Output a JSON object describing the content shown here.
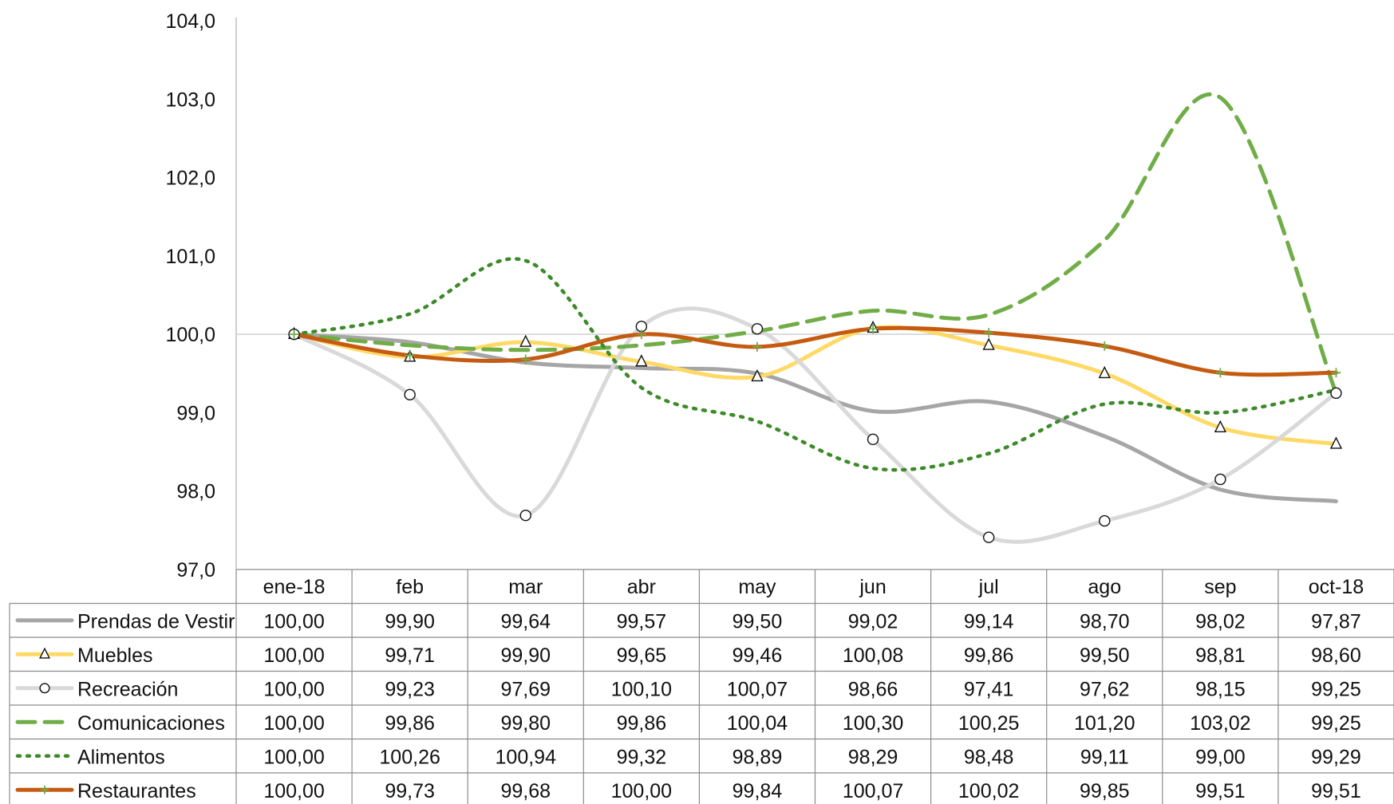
{
  "chart_data": {
    "type": "line",
    "title": "",
    "xlabel": "",
    "ylabel": "",
    "ylim": [
      97.0,
      104.0
    ],
    "ytick_step": 1.0,
    "ytick_labels": [
      "97,0",
      "98,0",
      "99,0",
      "100,0",
      "101,0",
      "102,0",
      "103,0",
      "104,0"
    ],
    "reference_line": 100.0,
    "categories": [
      "ene-18",
      "feb",
      "mar",
      "abr",
      "may",
      "jun",
      "jul",
      "ago",
      "sep",
      "oct-18"
    ],
    "legend_placement": "data-table-left",
    "series": [
      {
        "name": "Prendas de Vestir",
        "color": "#a6a6a6",
        "dash": "solid",
        "marker": "none",
        "values": [
          100.0,
          99.9,
          99.64,
          99.57,
          99.5,
          99.02,
          99.14,
          98.7,
          98.02,
          97.87
        ],
        "labels": [
          "100,00",
          "99,90",
          "99,64",
          "99,57",
          "99,50",
          "99,02",
          "99,14",
          "98,70",
          "98,02",
          "97,87"
        ]
      },
      {
        "name": "Muebles",
        "color": "#ffd966",
        "dash": "solid",
        "marker": "triangle-icon",
        "values": [
          100.0,
          99.71,
          99.9,
          99.65,
          99.46,
          100.08,
          99.86,
          99.5,
          98.81,
          98.6
        ],
        "labels": [
          "100,00",
          "99,71",
          "99,90",
          "99,65",
          "99,46",
          "100,08",
          "99,86",
          "99,50",
          "98,81",
          "98,60"
        ]
      },
      {
        "name": "Recreación",
        "color": "#d9d9d9",
        "dash": "solid",
        "marker": "circle-icon",
        "values": [
          100.0,
          99.23,
          97.69,
          100.1,
          100.07,
          98.66,
          97.41,
          97.62,
          98.15,
          99.25
        ],
        "labels": [
          "100,00",
          "99,23",
          "97,69",
          "100,10",
          "100,07",
          "98,66",
          "97,41",
          "97,62",
          "98,15",
          "99,25"
        ]
      },
      {
        "name": "Comunicaciones",
        "color": "#70ad47",
        "dash": "dashed",
        "marker": "none",
        "values": [
          100.0,
          99.86,
          99.8,
          99.86,
          100.04,
          100.3,
          100.25,
          101.2,
          103.02,
          99.25
        ],
        "labels": [
          "100,00",
          "99,86",
          "99,80",
          "99,86",
          "100,04",
          "100,30",
          "100,25",
          "101,20",
          "103,02",
          "99,25"
        ]
      },
      {
        "name": "Alimentos",
        "color": "#3d8a2a",
        "dash": "dotted",
        "marker": "none",
        "values": [
          100.0,
          100.26,
          100.94,
          99.32,
          98.89,
          98.29,
          98.48,
          99.11,
          99.0,
          99.29
        ],
        "labels": [
          "100,00",
          "100,26",
          "100,94",
          "99,32",
          "98,89",
          "98,29",
          "98,48",
          "99,11",
          "99,00",
          "99,29"
        ]
      },
      {
        "name": "Restaurantes",
        "color": "#c55a11",
        "dash": "solid",
        "marker": "plus-icon",
        "marker_color": "#70ad47",
        "values": [
          100.0,
          99.73,
          99.68,
          100.0,
          99.84,
          100.07,
          100.02,
          99.85,
          99.51,
          99.51
        ],
        "labels": [
          "100,00",
          "99,73",
          "99,68",
          "100,00",
          "99,84",
          "100,07",
          "100,02",
          "99,85",
          "99,51",
          "99,51"
        ]
      }
    ]
  }
}
